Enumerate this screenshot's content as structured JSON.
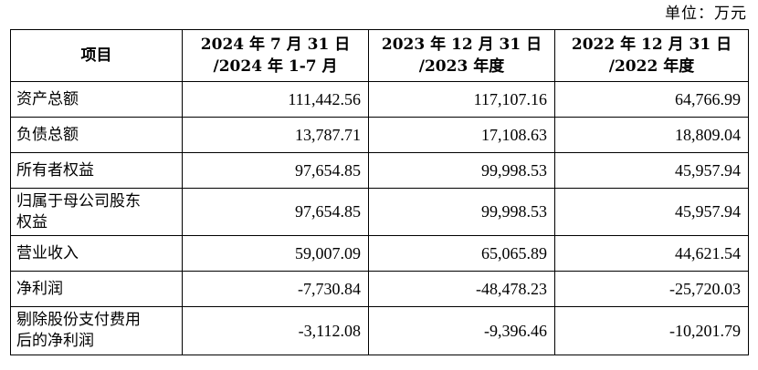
{
  "unit": "单位：万元",
  "table": {
    "headers": [
      {
        "lines": [
          "项目"
        ]
      },
      {
        "lines": [
          "2024 年 7 月 31 日",
          "/2024 年 1-7 月"
        ]
      },
      {
        "lines": [
          "2023 年 12 月 31 日",
          "/2023 年度"
        ]
      },
      {
        "lines": [
          "2022 年 12 月 31 日",
          "/2022 年度"
        ]
      }
    ],
    "rows": [
      {
        "label": [
          "资产总额"
        ],
        "values": [
          "111,442.56",
          "117,107.16",
          "64,766.99"
        ]
      },
      {
        "label": [
          "负债总额"
        ],
        "values": [
          "13,787.71",
          "17,108.63",
          "18,809.04"
        ]
      },
      {
        "label": [
          "所有者权益"
        ],
        "values": [
          "97,654.85",
          "99,998.53",
          "45,957.94"
        ]
      },
      {
        "label": [
          "归属于母公司股东",
          "权益"
        ],
        "values": [
          "97,654.85",
          "99,998.53",
          "45,957.94"
        ]
      },
      {
        "label": [
          "营业收入"
        ],
        "values": [
          "59,007.09",
          "65,065.89",
          "44,621.54"
        ]
      },
      {
        "label": [
          "净利润"
        ],
        "values": [
          "-7,730.84",
          "-48,478.23",
          "-25,720.03"
        ]
      },
      {
        "label": [
          "剔除股份支付费用",
          "后的净利润"
        ],
        "values": [
          "-3,112.08",
          "-9,396.46",
          "-10,201.79"
        ]
      }
    ]
  }
}
